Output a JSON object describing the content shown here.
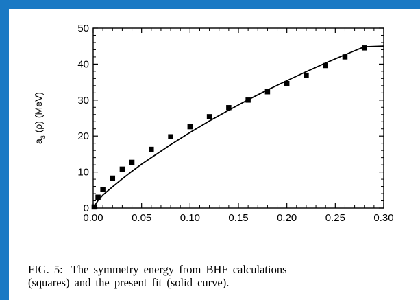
{
  "colors": {
    "frame": "#1a79c4",
    "panel": "#ffffff",
    "ink": "#000000"
  },
  "caption": {
    "label": "FIG. 5:",
    "line1": "The symmetry energy from BHF calculations",
    "line2": "(squares) and the present fit (solid curve)."
  },
  "chart_data": {
    "type": "scatter",
    "title": "",
    "xlabel": "",
    "ylabel": "a_s (ρ) (MeV)",
    "ylabel_base": "a",
    "ylabel_sub": "s",
    "ylabel_rest": " (ρ) (MeV)",
    "xlim": [
      0,
      0.3
    ],
    "ylim": [
      0,
      50
    ],
    "grid": false,
    "legend": "none",
    "x_ticks": [
      0,
      0.05,
      0.1,
      0.15,
      0.2,
      0.25,
      0.3
    ],
    "x_tick_labels": [
      "0.00",
      "0.05",
      "0.10",
      "0.15",
      "0.20",
      "0.25",
      "0.30"
    ],
    "y_ticks": [
      0,
      10,
      20,
      30,
      40,
      50
    ],
    "y_tick_labels": [
      "0",
      "10",
      "20",
      "30",
      "40",
      "50"
    ],
    "series": [
      {
        "kind": "points",
        "marker": "square",
        "x": [
          0.001,
          0.005,
          0.01,
          0.02,
          0.03,
          0.04,
          0.06,
          0.08,
          0.1,
          0.12,
          0.14,
          0.16,
          0.18,
          0.2,
          0.22,
          0.24,
          0.26,
          0.28
        ],
        "y": [
          0.3,
          3.0,
          5.2,
          8.3,
          10.8,
          12.7,
          16.3,
          19.8,
          22.6,
          25.4,
          27.9,
          30.0,
          32.3,
          34.6,
          36.9,
          39.6,
          42.0,
          44.5
        ]
      },
      {
        "kind": "line",
        "x": [
          0,
          0.005,
          0.01,
          0.02,
          0.03,
          0.04,
          0.05,
          0.06,
          0.08,
          0.1,
          0.12,
          0.14,
          0.16,
          0.18,
          0.2,
          0.22,
          0.24,
          0.26,
          0.28,
          0.3
        ],
        "y": [
          0,
          2.1,
          3.6,
          5.9,
          8.1,
          10.2,
          12.2,
          14.0,
          17.6,
          21.0,
          24.2,
          27.2,
          30.1,
          32.8,
          35.4,
          37.9,
          40.3,
          42.6,
          44.8,
          45.0
        ]
      }
    ]
  }
}
